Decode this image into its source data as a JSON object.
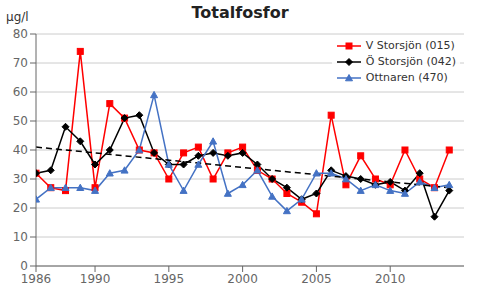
{
  "chart_data": {
    "type": "line",
    "title": "Totalfosfor",
    "y_label": "μg/l",
    "x": [
      1986,
      1987,
      1988,
      1989,
      1990,
      1991,
      1992,
      1993,
      1994,
      1995,
      1996,
      1997,
      1998,
      1999,
      2000,
      2001,
      2002,
      2003,
      2004,
      2005,
      2006,
      2007,
      2008,
      2009,
      2010,
      2011,
      2012,
      2013,
      2014
    ],
    "xlim": [
      1986,
      2015
    ],
    "xticks": [
      1986,
      1990,
      1995,
      2000,
      2005,
      2010
    ],
    "ylim": [
      0,
      80
    ],
    "yticks": [
      0,
      10,
      20,
      30,
      40,
      50,
      60,
      70,
      80
    ],
    "grid": "y",
    "legend": "upper right",
    "series": [
      {
        "name": "V Storsjön (015)",
        "color": "#ff0000",
        "marker": "square",
        "values": [
          32,
          27,
          26,
          74,
          27,
          56,
          51,
          40,
          39,
          30,
          39,
          41,
          30,
          39,
          41,
          33,
          30,
          25,
          22,
          18,
          52,
          28,
          38,
          30,
          28,
          40,
          30,
          27,
          40
        ]
      },
      {
        "name": "Ö Storsjön (042)",
        "color": "#000000",
        "marker": "diamond",
        "values": [
          32,
          33,
          48,
          43,
          35,
          40,
          51,
          52,
          39,
          35,
          35,
          38,
          39,
          38,
          39,
          35,
          30,
          27,
          23,
          25,
          33,
          31,
          30,
          28,
          29,
          26,
          32,
          17,
          26
        ]
      },
      {
        "name": "Ottnaren (470)",
        "color": "#4472c4",
        "marker": "triangle",
        "values": [
          23,
          27,
          27,
          27,
          26,
          32,
          33,
          40,
          59,
          35,
          26,
          35,
          43,
          25,
          28,
          33,
          24,
          19,
          23,
          32,
          32,
          30,
          26,
          28,
          26,
          25,
          29,
          27,
          28
        ]
      },
      {
        "x": [
          1986,
          2014
        ],
        "values": [
          41,
          27
        ],
        "color": "#000000",
        "line_style": "dashed"
      }
    ]
  }
}
